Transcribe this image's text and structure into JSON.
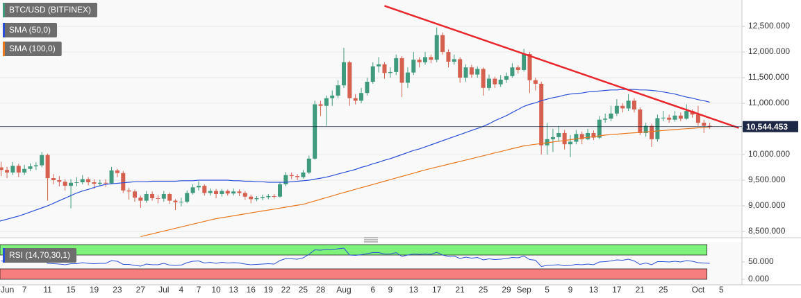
{
  "chart_data": [
    {
      "type": "candlestick",
      "name": "BTC/USD (BITFINEX)",
      "up_color": "#3f9a7e",
      "down_color": "#d6604f",
      "categories": [
        "Jun",
        null,
        null,
        null,
        null,
        null,
        "7",
        null,
        null,
        null,
        "11",
        null,
        null,
        null,
        "15",
        null,
        null,
        null,
        "19",
        null,
        null,
        null,
        "23",
        null,
        null,
        null,
        "27",
        null,
        null,
        null,
        "Jul",
        null,
        null,
        "4",
        null,
        null,
        "7",
        null,
        null,
        "10",
        null,
        null,
        "13",
        null,
        null,
        "16",
        null,
        null,
        "19",
        null,
        null,
        "22",
        null,
        null,
        "25",
        null,
        null,
        "28",
        null,
        null,
        null,
        "Aug",
        null,
        null,
        null,
        null,
        "6",
        null,
        null,
        "9",
        null,
        null,
        null,
        "13",
        null,
        null,
        null,
        "17",
        null,
        null,
        null,
        "21",
        null,
        null,
        null,
        "25",
        null,
        null,
        null,
        "29",
        null,
        null,
        "Sep",
        null,
        null,
        null,
        "5",
        null,
        null,
        null,
        "9",
        null,
        null,
        null,
        "13",
        null,
        null,
        null,
        "17",
        null,
        null,
        null,
        "21",
        null,
        null,
        null,
        "25",
        null,
        null,
        null,
        null,
        null,
        "Oct",
        null,
        null,
        null,
        "5",
        null,
        null,
        null
      ],
      "open": [
        null,
        null,
        9750,
        9700,
        9650,
        9780,
        9650,
        9720,
        9770,
        9790,
        9990,
        9540,
        9500,
        9470,
        9390,
        9450,
        9460,
        9520,
        9460,
        9430,
        9450,
        9440,
        9690,
        9640,
        9300,
        9280,
        9160,
        9100,
        9230,
        9150,
        9140,
        9230,
        9100,
        9070,
        9080,
        9250,
        9360,
        9390,
        9250,
        9290,
        9230,
        9290,
        9240,
        9280,
        9250,
        9180,
        9130,
        9150,
        9170,
        9190,
        9180,
        9420,
        9600,
        9580,
        9560,
        9650,
        9920,
        10980,
        10950,
        11100,
        11150,
        11350,
        11800,
        11100,
        11050,
        11200,
        11420,
        11720,
        11760,
        11590,
        11610,
        11880,
        11400,
        11600,
        11850,
        11800,
        11900,
        11850,
        12330,
        12000,
        11810,
        11860,
        11500,
        11700,
        11560,
        11670,
        11300,
        11480,
        11370,
        11460,
        11530,
        11700,
        11650,
        11960,
        11450,
        11380,
        10180,
        10300,
        10340,
        10420,
        10200,
        10250,
        10400,
        10300,
        10420,
        10330,
        10680,
        10700,
        10800,
        10950,
        10900,
        11050,
        10880,
        10420,
        10560,
        10300,
        10710,
        10720,
        10680,
        10760,
        10700,
        10850,
        10780,
        10620,
        10560,
        null,
        null,
        null,
        null,
        null
      ],
      "high": [
        null,
        null,
        9860,
        9760,
        9850,
        9820,
        9800,
        9830,
        9850,
        10050,
        10020,
        9620,
        9580,
        9520,
        9520,
        9560,
        9600,
        9560,
        9520,
        9510,
        9520,
        9760,
        9720,
        9680,
        9350,
        9320,
        9200,
        9290,
        9280,
        9210,
        9290,
        9260,
        9130,
        9160,
        9300,
        9420,
        9480,
        9420,
        9340,
        9330,
        9330,
        9320,
        9340,
        9320,
        9290,
        9220,
        9190,
        9220,
        9230,
        9230,
        9470,
        9660,
        9650,
        9620,
        9700,
        9980,
        11050,
        11050,
        11150,
        11250,
        11450,
        12080,
        11830,
        11180,
        11300,
        11500,
        11800,
        11900,
        11800,
        11700,
        11950,
        11920,
        11700,
        12000,
        11900,
        12000,
        11950,
        12480,
        12380,
        12050,
        11950,
        11900,
        11760,
        11750,
        11720,
        11700,
        11560,
        11520,
        11550,
        11600,
        11780,
        11740,
        12060,
        12000,
        11500,
        11420,
        10620,
        10500,
        10560,
        10480,
        10380,
        10480,
        10450,
        10500,
        10470,
        10750,
        10800,
        10950,
        11080,
        11000,
        11180,
        11100,
        10920,
        10620,
        10600,
        10780,
        10850,
        10780,
        10850,
        10820,
        10980,
        10880,
        10950,
        10680,
        10620,
        null,
        null,
        null,
        null,
        null
      ],
      "low": [
        null,
        null,
        9580,
        9540,
        9600,
        9560,
        9600,
        9680,
        9700,
        9750,
        9100,
        9420,
        9380,
        9300,
        8950,
        9380,
        9420,
        9400,
        9330,
        9380,
        9370,
        9420,
        9560,
        9250,
        9120,
        9080,
        8960,
        9060,
        9100,
        9050,
        9080,
        9040,
        8920,
        8990,
        9050,
        9220,
        9300,
        9200,
        9200,
        9150,
        9180,
        9200,
        9200,
        9190,
        9120,
        9050,
        9090,
        9110,
        9130,
        9140,
        9160,
        9380,
        9520,
        9500,
        9530,
        9620,
        9900,
        10750,
        10560,
        10950,
        11100,
        11300,
        10950,
        10980,
        11000,
        11150,
        11380,
        11600,
        11480,
        11500,
        11550,
        11120,
        11300,
        11550,
        11700,
        11750,
        11780,
        11800,
        11950,
        11700,
        11750,
        11400,
        11420,
        11500,
        11500,
        11150,
        11250,
        11300,
        11320,
        11400,
        11500,
        11580,
        11620,
        11200,
        11250,
        10000,
        10000,
        10050,
        10250,
        10100,
        9950,
        10200,
        10200,
        10280,
        10280,
        10300,
        10620,
        10650,
        10750,
        10820,
        10850,
        10820,
        10380,
        10350,
        10150,
        10250,
        10650,
        10620,
        10640,
        10650,
        10680,
        10720,
        10560,
        10420,
        10500,
        null,
        null,
        null,
        null,
        null
      ],
      "close": [
        null,
        null,
        9700,
        9650,
        9780,
        9650,
        9720,
        9770,
        9790,
        9990,
        9540,
        9500,
        9470,
        9390,
        9450,
        9460,
        9520,
        9460,
        9430,
        9450,
        9440,
        9690,
        9640,
        9300,
        9280,
        9160,
        9100,
        9230,
        9150,
        9140,
        9230,
        9100,
        9070,
        9080,
        9250,
        9360,
        9390,
        9250,
        9290,
        9230,
        9290,
        9240,
        9280,
        9250,
        9180,
        9130,
        9150,
        9170,
        9190,
        9180,
        9420,
        9600,
        9580,
        9560,
        9650,
        9920,
        10980,
        10950,
        11100,
        11150,
        11350,
        11800,
        11100,
        11050,
        11200,
        11420,
        11720,
        11760,
        11590,
        11610,
        11880,
        11400,
        11600,
        11850,
        11800,
        11900,
        11850,
        12330,
        12000,
        11810,
        11860,
        11500,
        11700,
        11560,
        11670,
        11300,
        11480,
        11370,
        11460,
        11530,
        11700,
        11650,
        11960,
        11450,
        11380,
        10180,
        10300,
        10340,
        10420,
        10200,
        10250,
        10400,
        10300,
        10420,
        10330,
        10680,
        10700,
        10800,
        10950,
        10900,
        11050,
        10880,
        10420,
        10560,
        10300,
        10710,
        10720,
        10680,
        10760,
        10700,
        10850,
        10780,
        10620,
        10560,
        10544,
        null,
        null,
        null,
        null,
        null
      ],
      "series": [
        {
          "name": "SMA (50,0)",
          "color": "#2a4fd7",
          "values": [
            8650,
            8680,
            8710,
            8740,
            8770,
            8800,
            8840,
            8880,
            8920,
            8960,
            9000,
            9050,
            9100,
            9150,
            9200,
            9250,
            9290,
            9320,
            9360,
            9390,
            9420,
            9430,
            9440,
            9450,
            9460,
            9470,
            9470,
            9470,
            9480,
            9480,
            9480,
            9480,
            9480,
            9490,
            9490,
            9490,
            9500,
            9500,
            9500,
            9500,
            9500,
            9500,
            9490,
            9490,
            9480,
            9480,
            9470,
            9470,
            9460,
            9460,
            9460,
            9460,
            9470,
            9480,
            9490,
            9500,
            9520,
            9540,
            9560,
            9590,
            9620,
            9650,
            9680,
            9710,
            9750,
            9780,
            9820,
            9850,
            9890,
            9920,
            9960,
            10000,
            10040,
            10080,
            10110,
            10150,
            10190,
            10230,
            10270,
            10310,
            10350,
            10390,
            10430,
            10470,
            10510,
            10550,
            10600,
            10660,
            10710,
            10760,
            10820,
            10880,
            10940,
            10980,
            11010,
            11050,
            11080,
            11110,
            11130,
            11160,
            11180,
            11190,
            11200,
            11220,
            11230,
            11240,
            11250,
            11260,
            11260,
            11270,
            11270,
            11270,
            11260,
            11260,
            11250,
            11240,
            11220,
            11200,
            11180,
            11150,
            11120,
            11100,
            11070,
            11050,
            11020,
            null,
            null,
            null,
            null,
            null
          ]
        },
        {
          "name": "SMA (100,0)",
          "color": "#e8771e",
          "values": [
            null,
            null,
            null,
            null,
            null,
            null,
            null,
            null,
            null,
            null,
            null,
            null,
            null,
            null,
            null,
            null,
            null,
            null,
            null,
            null,
            null,
            null,
            null,
            null,
            null,
            null,
            8400,
            8427,
            8454,
            8481,
            8508,
            8535,
            8562,
            8589,
            8616,
            8643,
            8670,
            8697,
            8724,
            8750,
            8769,
            8787,
            8806,
            8825,
            8844,
            8862,
            8881,
            8900,
            8918,
            8937,
            8956,
            8974,
            8993,
            9012,
            9030,
            9063,
            9096,
            9129,
            9161,
            9194,
            9227,
            9260,
            9291,
            9323,
            9354,
            9386,
            9417,
            9449,
            9480,
            9511,
            9543,
            9574,
            9606,
            9637,
            9669,
            9700,
            9728,
            9755,
            9783,
            9811,
            9838,
            9866,
            9894,
            9921,
            9949,
            9976,
            10004,
            10032,
            10059,
            10087,
            10115,
            10142,
            10170,
            10185,
            10200,
            10215,
            10230,
            10245,
            10260,
            10275,
            10290,
            10305,
            10320,
            10335,
            10350,
            10365,
            10380,
            10389,
            10398,
            10407,
            10416,
            10424,
            10433,
            10442,
            10451,
            10460,
            10469,
            10478,
            10487,
            10496,
            10504,
            10513,
            10522,
            10531,
            10540,
            null,
            null,
            null,
            null,
            null
          ]
        }
      ],
      "trendline": {
        "color": "#e8262b",
        "x": [
          68,
          129
        ],
        "values": [
          12900,
          10520
        ]
      },
      "last_price": {
        "value": 10544.453,
        "label": "10,544.453"
      },
      "ylim": [
        8392,
        13014
      ],
      "yticks": [
        {
          "value": 8500,
          "label": "8,500.000"
        },
        {
          "value": 9000,
          "label": "9,000.000"
        },
        {
          "value": 9500,
          "label": "9,500.000"
        },
        {
          "value": 10000,
          "label": "10,000.000"
        },
        {
          "value": 10500,
          "label": "10,500.000"
        },
        {
          "value": 11000,
          "label": "11,000.000"
        },
        {
          "value": 11500,
          "label": "11,500.000"
        },
        {
          "value": 12000,
          "label": "12,000.000"
        },
        {
          "value": 12500,
          "label": "12,500.000"
        }
      ],
      "grid": true
    },
    {
      "type": "line",
      "series": [
        {
          "name": "RSI (14,70,30,1)",
          "color": "#2a4fd7",
          "values": [
            null,
            null,
            53,
            51,
            55,
            50,
            53,
            55,
            56,
            61,
            46,
            45,
            44,
            42,
            45,
            45,
            48,
            46,
            45,
            46,
            46,
            54,
            52,
            43,
            43,
            40,
            38,
            44,
            42,
            42,
            46,
            41,
            40,
            41,
            48,
            52,
            53,
            47,
            49,
            46,
            49,
            47,
            48,
            47,
            44,
            42,
            43,
            44,
            45,
            44,
            54,
            60,
            59,
            58,
            62,
            72,
            85,
            84,
            86,
            86,
            88,
            90,
            70,
            69,
            71,
            74,
            77,
            77,
            73,
            73,
            77,
            66,
            70,
            73,
            72,
            73,
            72,
            78,
            70,
            66,
            67,
            60,
            64,
            61,
            63,
            56,
            59,
            57,
            58,
            60,
            63,
            62,
            67,
            57,
            55,
            37,
            40,
            41,
            42,
            39,
            40,
            43,
            42,
            44,
            42,
            50,
            51,
            53,
            56,
            55,
            58,
            53,
            43,
            47,
            42,
            51,
            51,
            50,
            52,
            50,
            54,
            52,
            48,
            47,
            46,
            null,
            null,
            null,
            null,
            null
          ]
        }
      ],
      "bands": [
        {
          "range": [
            70,
            100
          ],
          "color": "#7ff27c"
        },
        {
          "range": [
            0,
            30
          ],
          "color": "#f77e7e"
        }
      ],
      "ylim": [
        -14,
        106
      ],
      "yticks": [
        {
          "value": 0,
          "label": "0.000"
        },
        {
          "value": 50,
          "label": "50.000"
        }
      ]
    }
  ]
}
